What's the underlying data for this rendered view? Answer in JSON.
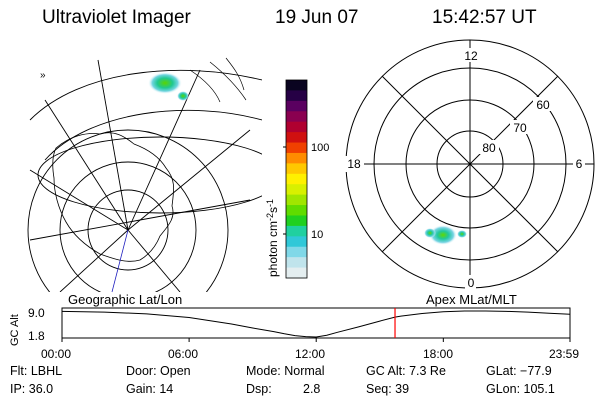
{
  "header": {
    "instrument": "Ultraviolet Imager",
    "date": "19 Jun 07",
    "time": "15:42:57 UT"
  },
  "left_map": {
    "caption": "Geographic Lat/Lon"
  },
  "right_map": {
    "caption": "Apex MLat/MLT",
    "mlt_labels": [
      "12",
      "18",
      "6",
      "0"
    ],
    "lat_labels": [
      "60",
      "70",
      "80"
    ]
  },
  "colorbar": {
    "unit_main": "photon cm",
    "unit_exp1": "-2",
    "unit_s": "s",
    "unit_exp2": "-1",
    "tick_labels": [
      "100",
      "10"
    ],
    "colors": [
      "#0a0420",
      "#260045",
      "#5a0060",
      "#8a0050",
      "#b00030",
      "#d01010",
      "#f04000",
      "#ff8c00",
      "#ffc800",
      "#fff000",
      "#d8f000",
      "#a0e600",
      "#60dc00",
      "#20d020",
      "#20d0a0",
      "#30c8d8",
      "#80d8e8",
      "#c0e4ec",
      "#e4eef0"
    ]
  },
  "chart_data": {
    "type": "line",
    "title": "",
    "xlabel": "",
    "ylabel": "GC Alt",
    "x_ticks": [
      "00:00",
      "06:00",
      "12:00",
      "18:00",
      "23:59"
    ],
    "y_ticks": [
      "9.0",
      "1.8"
    ],
    "x_hours": [
      0,
      2,
      4,
      6,
      8,
      9,
      10,
      10.5,
      11,
      11.5,
      12,
      12.5,
      13,
      14,
      15,
      15.72,
      16,
      17,
      18,
      19,
      20,
      21,
      22,
      23,
      23.98
    ],
    "y_re": [
      8.9,
      8.7,
      8.2,
      7.2,
      5.4,
      4.3,
      3.3,
      2.7,
      2.2,
      1.9,
      1.8,
      2.3,
      3.1,
      4.6,
      6.2,
      7.3,
      7.6,
      8.3,
      8.8,
      9.0,
      9.0,
      8.9,
      8.7,
      8.4,
      8.1
    ],
    "ylim": [
      1.8,
      9.0
    ],
    "xlim": [
      0,
      23.98
    ],
    "current_time_hours": 15.72,
    "marker_color": "#ff0000"
  },
  "footer": {
    "filter": "Flt: LBHL",
    "door": "Door: Open",
    "mode": "Mode: Normal",
    "gc_alt": "GC Alt: 7.3 Re",
    "glat": "GLat: −77.9",
    "ip": "IP: 36.0",
    "gain": "Gain: 14",
    "dsp_label": "Dsp:",
    "dsp_value": "2.8",
    "seq": "Seq: 39",
    "glon": "GLon: 105.1"
  }
}
